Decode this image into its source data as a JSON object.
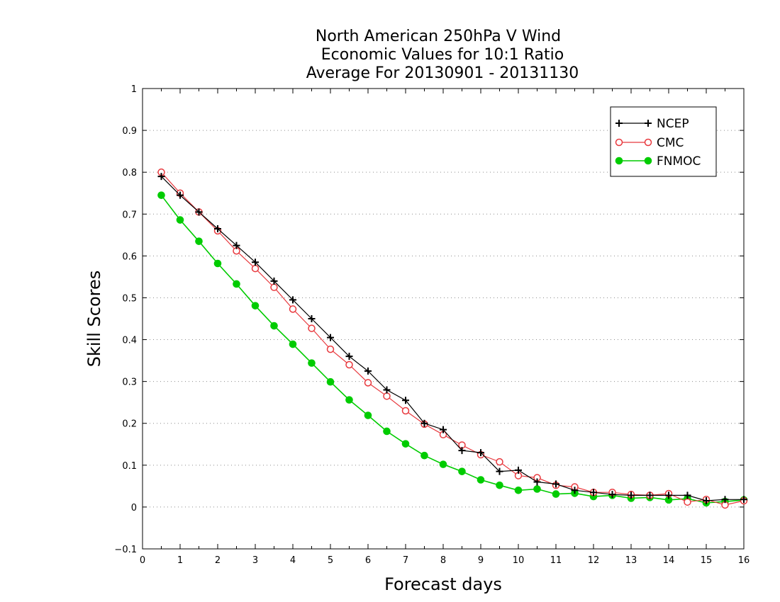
{
  "chart_data": {
    "type": "line",
    "title_lines": [
      "North American 250hPa V Wind",
      "Economic Values for 10:1 Ratio",
      "Average For 20130901 - 20131130"
    ],
    "xlabel": "Forecast days",
    "ylabel": "Skill Scores",
    "xlim": [
      0,
      16
    ],
    "ylim": [
      -0.1,
      1
    ],
    "x_ticks": [
      "0",
      "1",
      "2",
      "3",
      "4",
      "5",
      "6",
      "7",
      "8",
      "9",
      "10",
      "11",
      "12",
      "13",
      "14",
      "15",
      "16"
    ],
    "y_ticks": [
      "−0.1",
      "0",
      "0.1",
      "0.2",
      "0.3",
      "0.4",
      "0.5",
      "0.6",
      "0.7",
      "0.8",
      "0.9",
      "1"
    ],
    "grid": "horizontal dotted",
    "legend_position": "top-right",
    "x": [
      0.5,
      1,
      1.5,
      2,
      2.5,
      3,
      3.5,
      4,
      4.5,
      5,
      5.5,
      6,
      6.5,
      7,
      7.5,
      8,
      8.5,
      9,
      9.5,
      10,
      10.5,
      11,
      11.5,
      12,
      12.5,
      13,
      13.5,
      14,
      14.5,
      15,
      15.5,
      16
    ],
    "series": [
      {
        "name": "NCEP",
        "color": "#000000",
        "marker": "plus",
        "values": [
          0.79,
          0.745,
          0.705,
          0.665,
          0.625,
          0.585,
          0.54,
          0.495,
          0.45,
          0.405,
          0.36,
          0.325,
          0.28,
          0.255,
          0.2,
          0.185,
          0.135,
          0.13,
          0.085,
          0.088,
          0.06,
          0.055,
          0.04,
          0.035,
          0.03,
          0.028,
          0.028,
          0.028,
          0.028,
          0.015,
          0.018,
          0.018
        ]
      },
      {
        "name": "CMC",
        "color": "#e8383d",
        "marker": "open-circle",
        "values": [
          0.8,
          0.75,
          0.705,
          0.66,
          0.612,
          0.57,
          0.525,
          0.473,
          0.427,
          0.377,
          0.34,
          0.297,
          0.265,
          0.23,
          0.198,
          0.173,
          0.148,
          0.125,
          0.108,
          0.075,
          0.07,
          0.052,
          0.048,
          0.035,
          0.035,
          0.03,
          0.028,
          0.032,
          0.012,
          0.018,
          0.005,
          0.015
        ]
      },
      {
        "name": "FNMOC",
        "color": "#00cc00",
        "marker": "filled-circle",
        "values": [
          0.745,
          0.686,
          0.635,
          0.582,
          0.533,
          0.481,
          0.433,
          0.389,
          0.344,
          0.299,
          0.256,
          0.219,
          0.181,
          0.151,
          0.123,
          0.102,
          0.085,
          0.065,
          0.052,
          0.04,
          0.043,
          0.031,
          0.033,
          0.025,
          0.028,
          0.021,
          0.023,
          0.017,
          0.02,
          0.01,
          0.013,
          0.017
        ]
      }
    ]
  }
}
